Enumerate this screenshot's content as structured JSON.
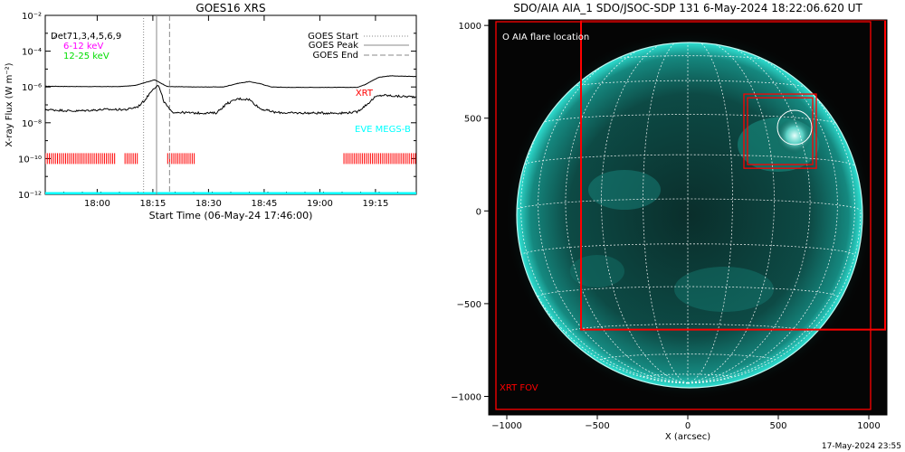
{
  "left_panel": {
    "title": "GOES16 XRS",
    "ylabel": "X-ray Flux (W m⁻²)",
    "xlabel": "Start Time (06-May-24 17:46:00)",
    "channels_label": "D̷et71,3,4,5,6,9",
    "legend_low": "6-12 keV",
    "legend_high": "12-25 keV",
    "legend_start": "GOES Start",
    "legend_peak": "GOES Peak",
    "legend_end": "GOES End",
    "xrt_label": "XRT",
    "eve_label": "EVE MEGS-B",
    "colors": {
      "low": "#ff00ff",
      "high": "#00dd00",
      "xrt": "#ff0000",
      "eve": "#00ffff",
      "curve": "#000000"
    }
  },
  "right_panel": {
    "title": "SDO/AIA AIA_1 SDO/JSOC-SDP 131  6-May-2024 18:22:06.620 UT",
    "xlabel": "X (arcsec)",
    "flare_legend": "O AIA flare location",
    "fov_label": "XRT FOV",
    "footer": "17-May-2024 23:55",
    "disk_color": "#0c7d75",
    "limb_color": "#2fe0d2",
    "fov_color": "#ff0000"
  },
  "chart_data": [
    {
      "type": "line",
      "title": "GOES16 XRS",
      "xlabel": "Start Time (06-May-24 17:46:00)",
      "ylabel": "X-ray Flux (W m⁻²)",
      "x_ticks": [
        "18:00",
        "18:15",
        "18:30",
        "18:45",
        "19:00",
        "19:15"
      ],
      "x_tick_minutes": [
        14,
        29,
        44,
        59,
        74,
        89
      ],
      "xlim_minutes": [
        0,
        100
      ],
      "y_scale": "log",
      "ylim": [
        1e-12,
        0.01
      ],
      "y_ticks": [
        "10⁻¹²",
        "10⁻¹⁰",
        "10⁻⁸",
        "10⁻⁶",
        "10⁻⁴",
        "10⁻²"
      ],
      "y_tick_values": [
        1e-12,
        1e-10,
        1e-08,
        1e-06,
        0.0001,
        0.01
      ],
      "markers": {
        "goes_start_min": 26.5,
        "goes_peak_min": 30.0,
        "goes_end_min": 33.5
      },
      "series": [
        {
          "name": "6-12 keV",
          "x_minutes": [
            0,
            10,
            20,
            24,
            27,
            29.5,
            31,
            33,
            40,
            48,
            52,
            55,
            58,
            61,
            65,
            70,
            75,
            80,
            84,
            86,
            88,
            90,
            93,
            96,
            100
          ],
          "values": [
            1.1e-06,
            1.05e-06,
            1.05e-06,
            1.2e-06,
            1.8e-06,
            2.5e-06,
            1.7e-06,
            1.05e-06,
            1e-06,
            1e-06,
            1.6e-06,
            2e-06,
            1.5e-06,
            1e-06,
            9.5e-07,
            9.5e-07,
            9.5e-07,
            9.5e-07,
            9.5e-07,
            1.3e-06,
            2.2e-06,
            3.5e-06,
            4.2e-06,
            4e-06,
            3.8e-06
          ]
        },
        {
          "name": "12-25 keV",
          "x_minutes": [
            0,
            8,
            16,
            22,
            25,
            27,
            29,
            30.5,
            32,
            34,
            40,
            46,
            49,
            52,
            55,
            58,
            62,
            66,
            70,
            76,
            80,
            84,
            87,
            89,
            91,
            95,
            100
          ],
          "values": [
            5.5e-08,
            4.5e-08,
            5.5e-08,
            5.5e-08,
            8e-08,
            2e-07,
            8e-07,
            1.2e-06,
            1.5e-07,
            4e-08,
            3.5e-08,
            3.5e-08,
            1.2e-07,
            2.2e-07,
            2e-07,
            6e-08,
            3.8e-08,
            3.5e-08,
            3.5e-08,
            3.5e-08,
            3.5e-08,
            4e-08,
            1.2e-07,
            2.8e-07,
            3.5e-07,
            3e-07,
            2.8e-07
          ]
        }
      ],
      "xrt_intervals_minutes": [
        [
          0,
          19
        ],
        [
          21.5,
          25
        ],
        [
          33,
          40.5
        ],
        [
          80.5,
          100
        ]
      ],
      "eve_megs_b_level": 1e-12
    },
    {
      "type": "scatter",
      "title": "SDO/AIA AIA_1 SDO/JSOC-SDP 131  6-May-2024 18:22:06.620 UT",
      "xlabel": "X (arcsec)",
      "x_ticks": [
        -1000,
        -500,
        0,
        500,
        1000
      ],
      "y_ticks": [
        -1000,
        -500,
        0,
        500,
        1000
      ],
      "xlim": [
        -1100,
        1100
      ],
      "ylim": [
        -1100,
        1030
      ],
      "solar_radius_arcsec": 955,
      "aia_flare_location": {
        "x": 590,
        "y": 450,
        "radius": 95
      },
      "xrt_fov_boxes": [
        {
          "x0": -1060,
          "x1": 1010,
          "y0": -1070,
          "y1": 1020
        },
        {
          "x0": -590,
          "x1": 1090,
          "y0": -640,
          "y1": 1030
        },
        {
          "x0": 310,
          "x1": 710,
          "y0": 230,
          "y1": 630
        },
        {
          "x0": 330,
          "x1": 690,
          "y0": 250,
          "y1": 610
        }
      ]
    }
  ]
}
